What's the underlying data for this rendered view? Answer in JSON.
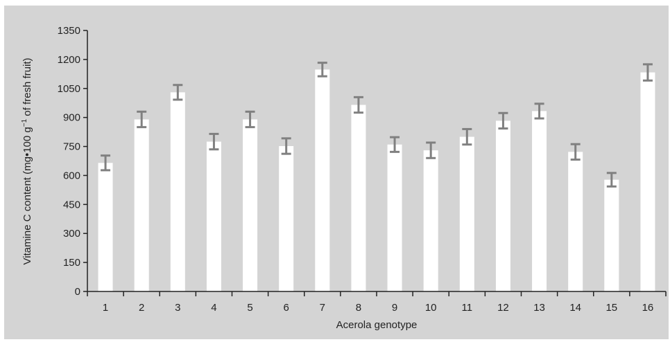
{
  "chart_data": {
    "type": "bar",
    "xlabel": "Acerola genotype",
    "ylabel_parts": {
      "before": "Vitamine C content (mg•100 g",
      "superscript": "−1",
      "after": " of fresh fruit)"
    },
    "categories": [
      "1",
      "2",
      "3",
      "4",
      "5",
      "6",
      "7",
      "8",
      "9",
      "10",
      "11",
      "12",
      "13",
      "14",
      "15",
      "16"
    ],
    "values": [
      665,
      890,
      1030,
      775,
      890,
      752,
      1148,
      965,
      760,
      730,
      800,
      883,
      933,
      722,
      578,
      1133
    ],
    "errors": [
      38,
      40,
      38,
      40,
      40,
      40,
      35,
      40,
      38,
      40,
      40,
      40,
      38,
      40,
      35,
      42
    ],
    "ylim": [
      0,
      1350
    ],
    "yticks": [
      "0",
      "150",
      "300",
      "450",
      "600",
      "750",
      "900",
      "1050",
      "1200",
      "1350"
    ],
    "grid": false,
    "colors": {
      "plot_background": "#d4d4d4",
      "bar": "#ffffff",
      "error_bar": "#808080",
      "axis": "#222222"
    }
  }
}
